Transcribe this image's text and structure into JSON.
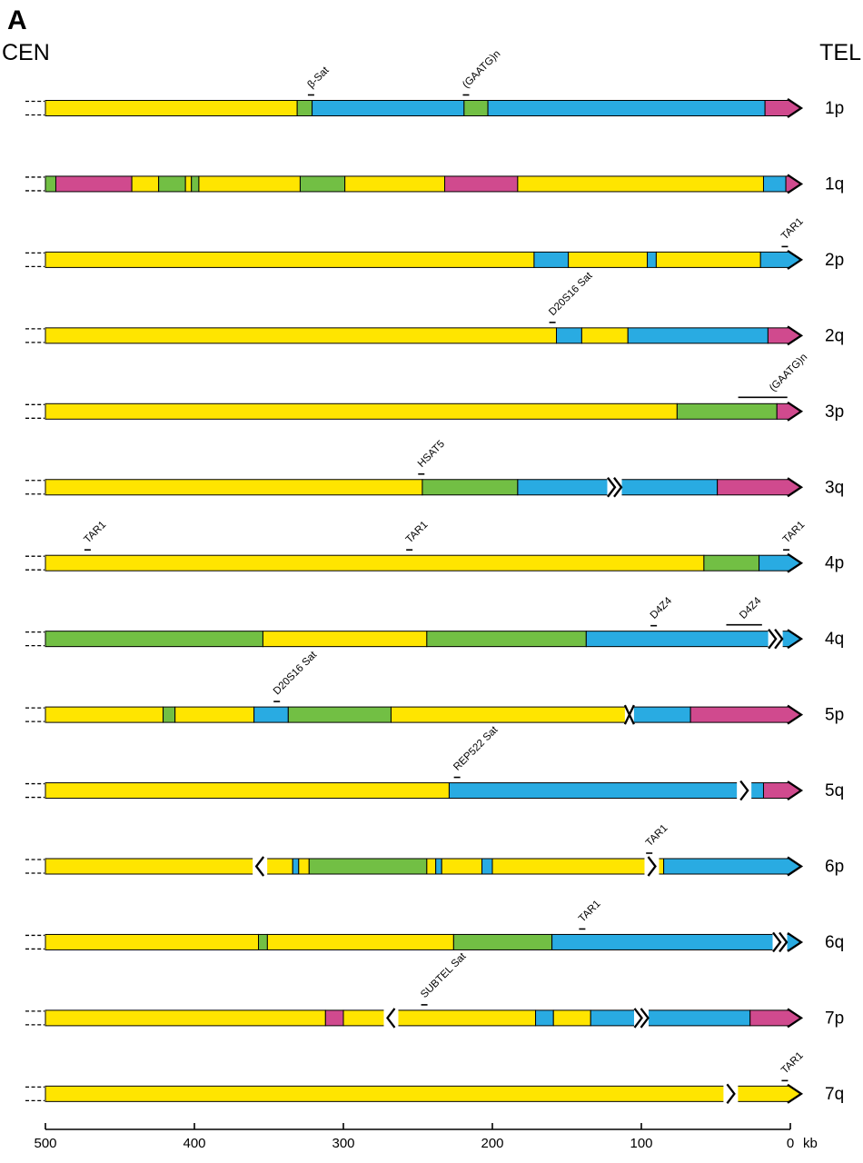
{
  "figure": {
    "panel_label": "A",
    "left_end_label": "CEN",
    "right_end_label": "TEL",
    "axis": {
      "ticks": [
        500,
        400,
        300,
        200,
        100,
        0
      ],
      "unit": "kb",
      "max_kb": 500
    }
  },
  "colors": {
    "yellow": "#FFE500",
    "blue": "#29ABE2",
    "green": "#72BF44",
    "magenta": "#D04A8E",
    "outline": "#000000"
  },
  "rows": [
    {
      "label": "1p",
      "tip": "magenta",
      "segments": [
        {
          "color": "yellow",
          "from": 500,
          "to": 331
        },
        {
          "color": "green",
          "from": 331,
          "to": 321
        },
        {
          "color": "blue",
          "from": 321,
          "to": 219
        },
        {
          "color": "green",
          "from": 219,
          "to": 203
        },
        {
          "color": "blue",
          "from": 203,
          "to": 17
        },
        {
          "color": "magenta",
          "from": 17,
          "to": 0
        }
      ],
      "annotations": [
        {
          "text": "β-Sat",
          "kb": 322,
          "marker": "tick"
        },
        {
          "text": "(GAATG)n",
          "kb": 218,
          "marker": "tick"
        }
      ]
    },
    {
      "label": "1q",
      "tip": "magenta",
      "segments": [
        {
          "color": "green",
          "from": 500,
          "to": 493
        },
        {
          "color": "magenta",
          "from": 493,
          "to": 442
        },
        {
          "color": "yellow",
          "from": 442,
          "to": 424
        },
        {
          "color": "green",
          "from": 424,
          "to": 406
        },
        {
          "color": "yellow",
          "from": 406,
          "to": 402
        },
        {
          "color": "green",
          "from": 402,
          "to": 397
        },
        {
          "color": "yellow",
          "from": 397,
          "to": 329
        },
        {
          "color": "green",
          "from": 329,
          "to": 299
        },
        {
          "color": "yellow",
          "from": 299,
          "to": 232
        },
        {
          "color": "magenta",
          "from": 232,
          "to": 183
        },
        {
          "color": "yellow",
          "from": 183,
          "to": 18
        },
        {
          "color": "blue",
          "from": 18,
          "to": 3
        },
        {
          "color": "magenta",
          "from": 3,
          "to": 0
        }
      ],
      "annotations": []
    },
    {
      "label": "2p",
      "tip": "blue",
      "segments": [
        {
          "color": "yellow",
          "from": 500,
          "to": 172
        },
        {
          "color": "blue",
          "from": 172,
          "to": 149
        },
        {
          "color": "yellow",
          "from": 149,
          "to": 96
        },
        {
          "color": "blue",
          "from": 96,
          "to": 90
        },
        {
          "color": "yellow",
          "from": 90,
          "to": 20
        },
        {
          "color": "blue",
          "from": 20,
          "to": 0
        }
      ],
      "annotations": [
        {
          "text": "TAR1",
          "kb": 4,
          "marker": "tick"
        }
      ]
    },
    {
      "label": "2q",
      "tip": "magenta",
      "segments": [
        {
          "color": "yellow",
          "from": 500,
          "to": 157
        },
        {
          "color": "blue",
          "from": 157,
          "to": 140
        },
        {
          "color": "yellow",
          "from": 140,
          "to": 109
        },
        {
          "color": "blue",
          "from": 109,
          "to": 15
        },
        {
          "color": "magenta",
          "from": 15,
          "to": 0
        }
      ],
      "annotations": [
        {
          "text": "D20S16 Sat",
          "kb": 160,
          "marker": "tick"
        }
      ]
    },
    {
      "label": "3p",
      "tip": "magenta",
      "segments": [
        {
          "color": "yellow",
          "from": 500,
          "to": 76
        },
        {
          "color": "green",
          "from": 76,
          "to": 9
        },
        {
          "color": "magenta",
          "from": 9,
          "to": 0
        }
      ],
      "annotations": [
        {
          "text": "(GAATG)n",
          "kb": 12,
          "marker": "line",
          "from": 35,
          "to": 2
        }
      ]
    },
    {
      "label": "3q",
      "tip": "magenta",
      "segments": [
        {
          "color": "yellow",
          "from": 500,
          "to": 247
        },
        {
          "color": "green",
          "from": 247,
          "to": 183
        },
        {
          "color": "blue",
          "from": 183,
          "to": 49
        },
        {
          "color": "magenta",
          "from": 49,
          "to": 0
        }
      ],
      "breaks": [
        {
          "kb": 118,
          "type": "chev2"
        }
      ],
      "annotations": [
        {
          "text": "HSAT5",
          "kb": 248,
          "marker": "tick"
        }
      ]
    },
    {
      "label": "4p",
      "tip": "blue",
      "segments": [
        {
          "color": "yellow",
          "from": 500,
          "to": 58
        },
        {
          "color": "green",
          "from": 58,
          "to": 21
        },
        {
          "color": "blue",
          "from": 21,
          "to": 0
        }
      ],
      "annotations": [
        {
          "text": "TAR1",
          "kb": 472,
          "marker": "tick"
        },
        {
          "text": "TAR1",
          "kb": 256,
          "marker": "tick"
        },
        {
          "text": "TAR1",
          "kb": 3,
          "marker": "tick"
        }
      ]
    },
    {
      "label": "4q",
      "tip": "blue",
      "segments": [
        {
          "color": "green",
          "from": 500,
          "to": 354
        },
        {
          "color": "yellow",
          "from": 354,
          "to": 244
        },
        {
          "color": "green",
          "from": 244,
          "to": 137
        },
        {
          "color": "blue",
          "from": 137,
          "to": 0
        }
      ],
      "breaks": [
        {
          "kb": 10,
          "type": "chev2"
        }
      ],
      "annotations": [
        {
          "text": "D4Z4",
          "kb": 92,
          "marker": "tick"
        },
        {
          "text": "D4Z4",
          "kb": 32,
          "marker": "line",
          "from": 43,
          "to": 19
        }
      ]
    },
    {
      "label": "5p",
      "tip": "magenta",
      "segments": [
        {
          "color": "yellow",
          "from": 500,
          "to": 421
        },
        {
          "color": "green",
          "from": 421,
          "to": 413
        },
        {
          "color": "yellow",
          "from": 413,
          "to": 360
        },
        {
          "color": "blue",
          "from": 360,
          "to": 337
        },
        {
          "color": "green",
          "from": 337,
          "to": 268
        },
        {
          "color": "yellow",
          "from": 268,
          "to": 108
        },
        {
          "color": "blue",
          "from": 108,
          "to": 67
        },
        {
          "color": "magenta",
          "from": 67,
          "to": 0
        }
      ],
      "breaks": [
        {
          "kb": 108,
          "type": "x"
        }
      ],
      "annotations": [
        {
          "text": "D20S16 Sat",
          "kb": 345,
          "marker": "tick"
        }
      ]
    },
    {
      "label": "5q",
      "tip": "magenta",
      "segments": [
        {
          "color": "yellow",
          "from": 500,
          "to": 229
        },
        {
          "color": "blue",
          "from": 229,
          "to": 18
        },
        {
          "color": "magenta",
          "from": 18,
          "to": 0
        }
      ],
      "breaks": [
        {
          "kb": 31,
          "type": "chev1"
        }
      ],
      "annotations": [
        {
          "text": "REP522 Sat",
          "kb": 224,
          "marker": "tick"
        }
      ]
    },
    {
      "label": "6p",
      "tip": "blue",
      "segments": [
        {
          "color": "yellow",
          "from": 500,
          "to": 334
        },
        {
          "color": "blue",
          "from": 334,
          "to": 330
        },
        {
          "color": "yellow",
          "from": 330,
          "to": 323
        },
        {
          "color": "green",
          "from": 323,
          "to": 244
        },
        {
          "color": "yellow",
          "from": 244,
          "to": 238
        },
        {
          "color": "blue",
          "from": 238,
          "to": 234
        },
        {
          "color": "yellow",
          "from": 234,
          "to": 207
        },
        {
          "color": "blue",
          "from": 207,
          "to": 200
        },
        {
          "color": "yellow",
          "from": 200,
          "to": 85
        },
        {
          "color": "blue",
          "from": 85,
          "to": 0
        }
      ],
      "breaks": [
        {
          "kb": 356,
          "type": "chevL"
        },
        {
          "kb": 93,
          "type": "chev1"
        }
      ],
      "annotations": [
        {
          "text": "TAR1",
          "kb": 95,
          "marker": "tick"
        }
      ]
    },
    {
      "label": "6q",
      "tip": "blue",
      "segments": [
        {
          "color": "yellow",
          "from": 500,
          "to": 357
        },
        {
          "color": "green",
          "from": 357,
          "to": 351
        },
        {
          "color": "yellow",
          "from": 351,
          "to": 226
        },
        {
          "color": "green",
          "from": 226,
          "to": 160
        },
        {
          "color": "blue",
          "from": 160,
          "to": 0
        }
      ],
      "breaks": [
        {
          "kb": 7,
          "type": "chev2"
        }
      ],
      "annotations": [
        {
          "text": "TAR1",
          "kb": 140,
          "marker": "tick"
        }
      ]
    },
    {
      "label": "7p",
      "tip": "magenta",
      "segments": [
        {
          "color": "yellow",
          "from": 500,
          "to": 312
        },
        {
          "color": "magenta",
          "from": 312,
          "to": 300
        },
        {
          "color": "yellow",
          "from": 300,
          "to": 171
        },
        {
          "color": "blue",
          "from": 171,
          "to": 159
        },
        {
          "color": "yellow",
          "from": 159,
          "to": 134
        },
        {
          "color": "blue",
          "from": 134,
          "to": 27
        },
        {
          "color": "magenta",
          "from": 27,
          "to": 0
        }
      ],
      "breaks": [
        {
          "kb": 268,
          "type": "chevL"
        },
        {
          "kb": 100,
          "type": "chev2"
        }
      ],
      "annotations": [
        {
          "text": "SUBTEL Sat",
          "kb": 246,
          "marker": "tick"
        }
      ]
    },
    {
      "label": "7q",
      "tip": "yellow",
      "segments": [
        {
          "color": "yellow",
          "from": 500,
          "to": 0
        }
      ],
      "breaks": [
        {
          "kb": 40,
          "type": "chev1"
        }
      ],
      "annotations": [
        {
          "text": "TAR1",
          "kb": 4,
          "marker": "tick"
        }
      ]
    }
  ]
}
